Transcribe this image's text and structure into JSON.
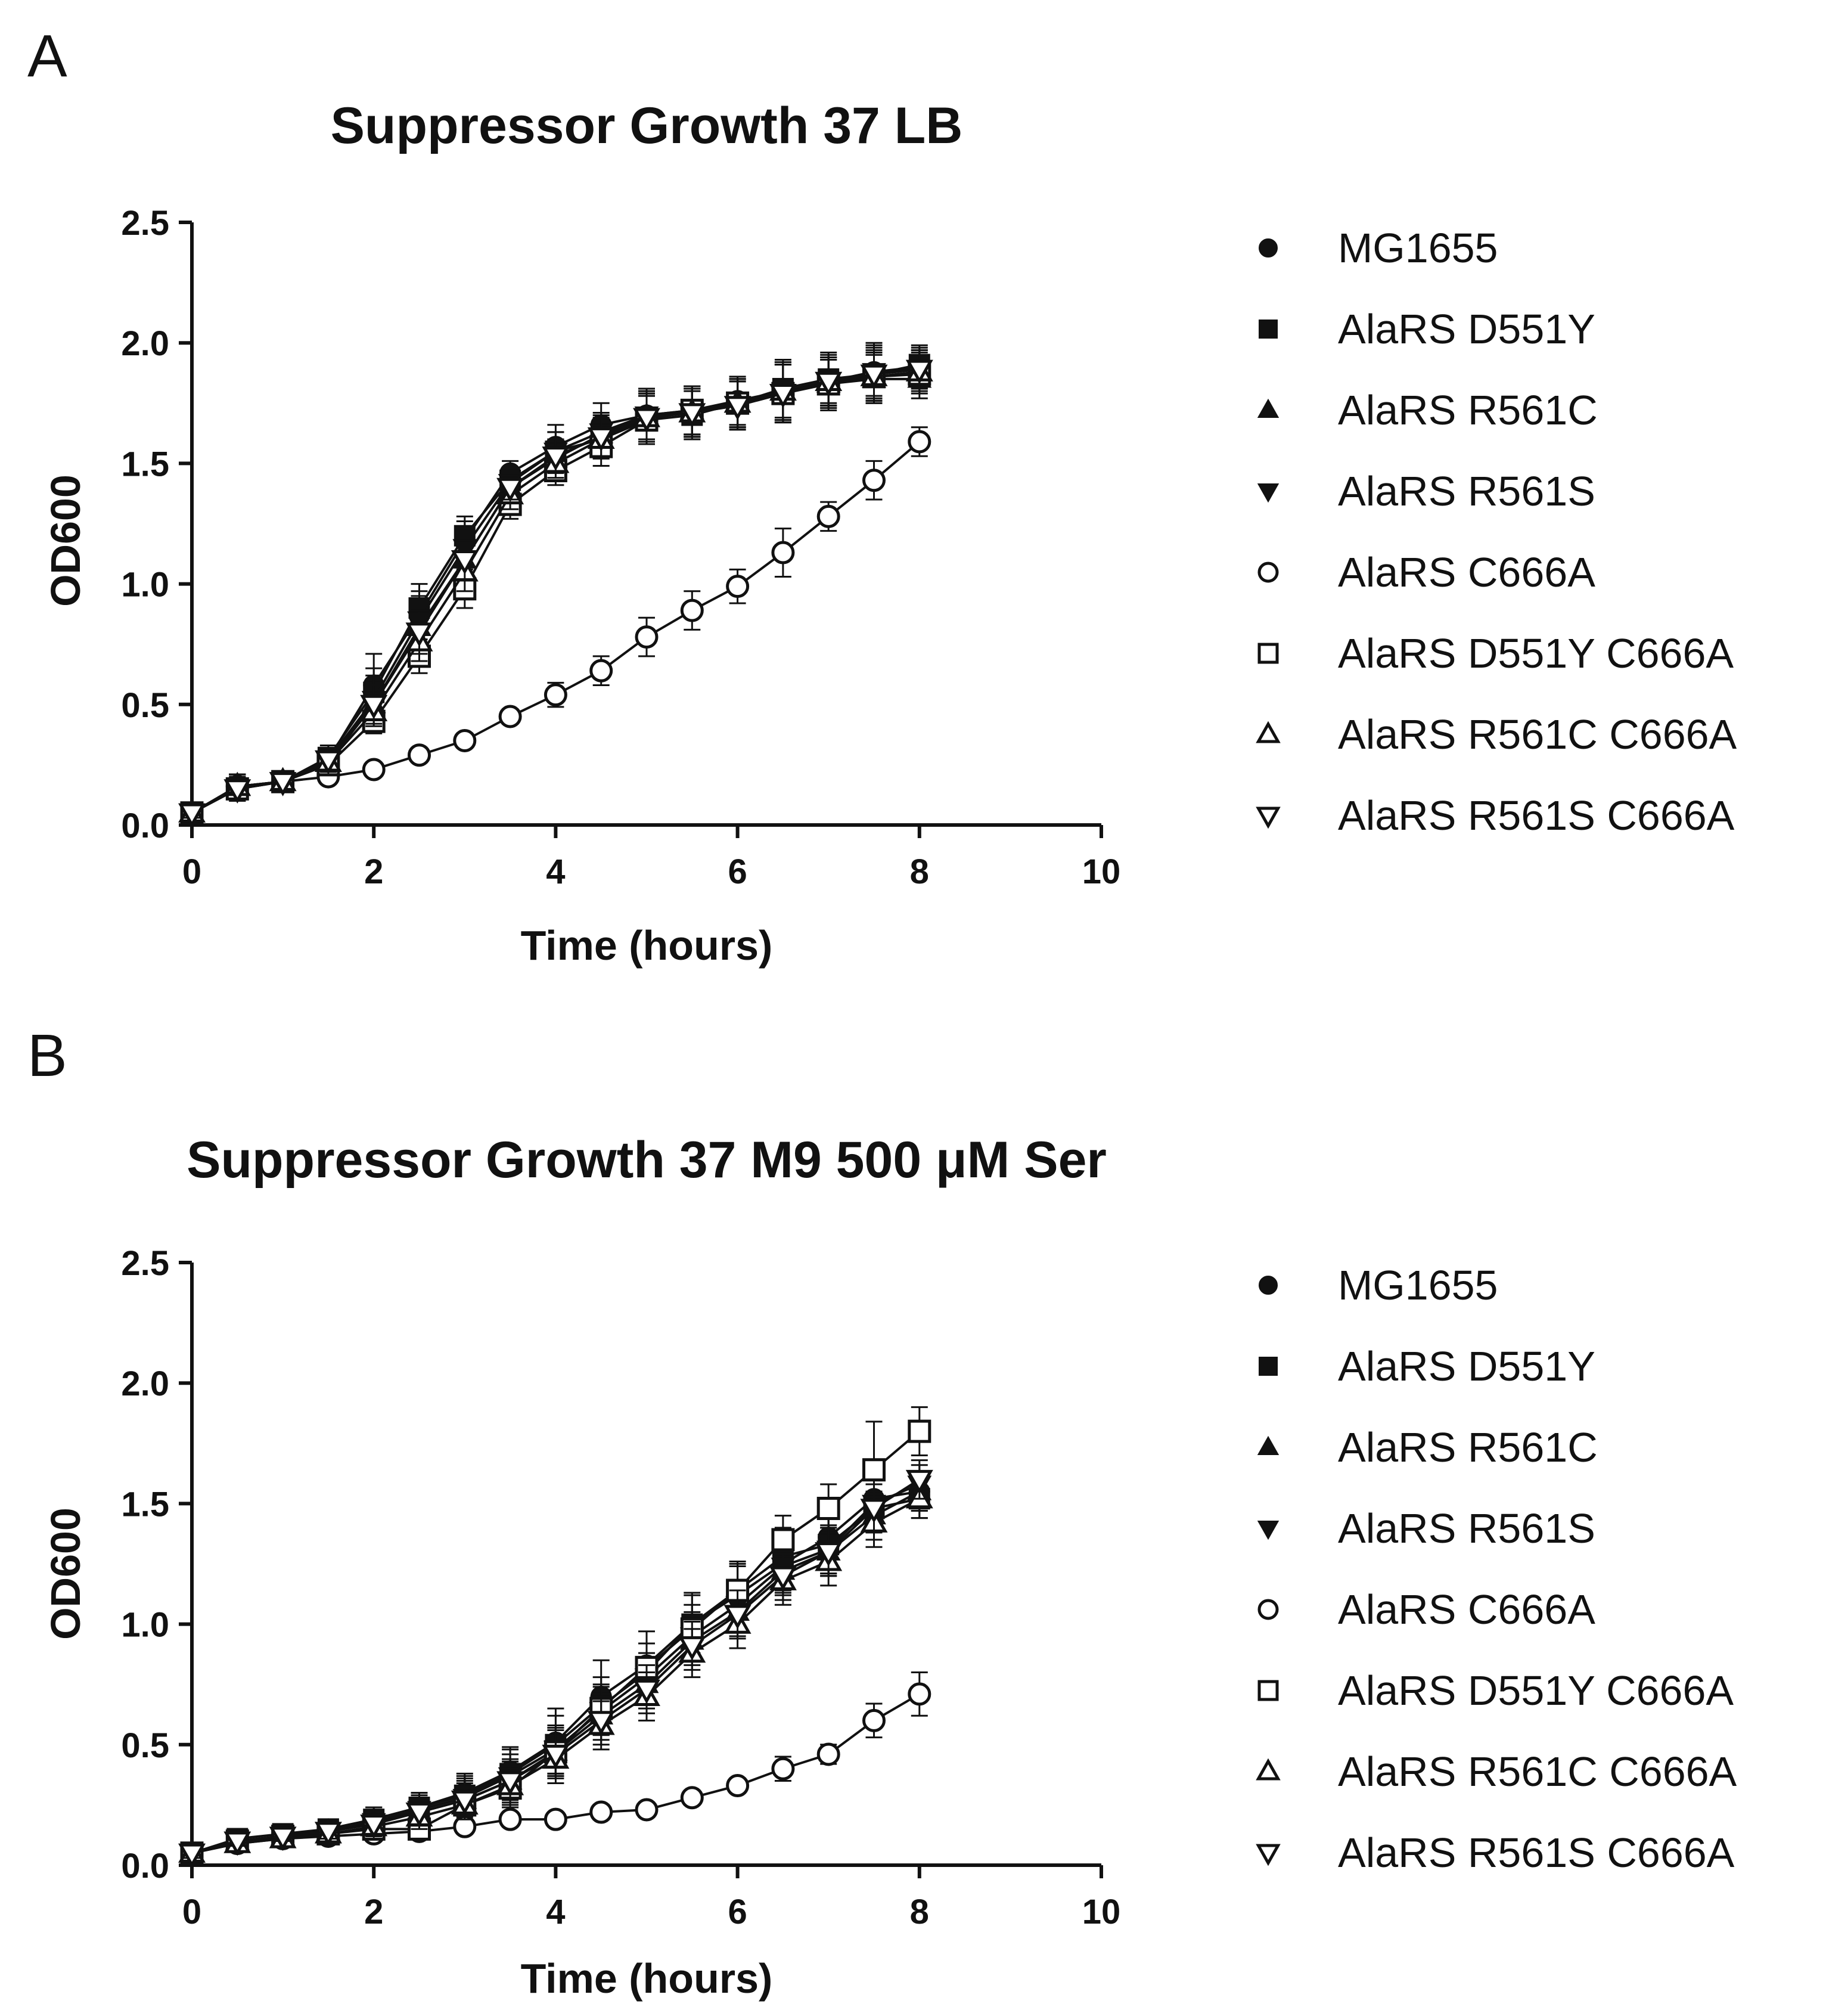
{
  "chart_data": [
    {
      "panel": "A",
      "type": "line",
      "title": "Suppressor Growth 37 LB",
      "xlabel": "Time (hours)",
      "ylabel": "OD600",
      "xlim": [
        0,
        10
      ],
      "ylim": [
        0,
        2.5
      ],
      "xticks": [
        "0",
        "2",
        "4",
        "6",
        "8",
        "10"
      ],
      "yticks": [
        "0.0",
        "0.5",
        "1.0",
        "1.5",
        "2.0",
        "2.5"
      ],
      "x": [
        0,
        0.5,
        1,
        1.5,
        2,
        2.5,
        3,
        3.5,
        4,
        4.5,
        5,
        5.5,
        6,
        6.5,
        7,
        7.5,
        8
      ],
      "legend_position": "right",
      "series": [
        {
          "name": "MG1655",
          "marker": "circle",
          "filled": true,
          "values": [
            0.05,
            0.16,
            0.18,
            0.27,
            0.58,
            0.87,
            1.18,
            1.46,
            1.57,
            1.66,
            1.7,
            1.72,
            1.76,
            1.8,
            1.84,
            1.88,
            1.9
          ],
          "errors": [
            0.02,
            0.05,
            0.03,
            0.05,
            0.13,
            0.1,
            0.08,
            0.05,
            0.09,
            0.09,
            0.11,
            0.1,
            0.1,
            0.12,
            0.12,
            0.12,
            0.08
          ]
        },
        {
          "name": "AlaRS D551Y",
          "marker": "square",
          "filled": true,
          "values": [
            0.05,
            0.15,
            0.18,
            0.28,
            0.55,
            0.9,
            1.2,
            1.43,
            1.55,
            1.6,
            1.68,
            1.7,
            1.75,
            1.81,
            1.85,
            1.87,
            1.91
          ],
          "errors": [
            0.02,
            0.04,
            0.03,
            0.05,
            0.1,
            0.1,
            0.08,
            0.05,
            0.08,
            0.08,
            0.1,
            0.1,
            0.1,
            0.12,
            0.1,
            0.12,
            0.08
          ]
        },
        {
          "name": "AlaRS R561C",
          "marker": "triangle-up",
          "filled": true,
          "values": [
            0.05,
            0.16,
            0.18,
            0.26,
            0.5,
            0.82,
            1.1,
            1.4,
            1.52,
            1.62,
            1.7,
            1.72,
            1.75,
            1.8,
            1.83,
            1.85,
            1.85
          ],
          "errors": [
            0.02,
            0.05,
            0.03,
            0.04,
            0.1,
            0.1,
            0.08,
            0.05,
            0.08,
            0.08,
            0.1,
            0.1,
            0.1,
            0.12,
            0.1,
            0.1,
            0.08
          ]
        },
        {
          "name": "AlaRS R561S",
          "marker": "triangle-down",
          "filled": true,
          "values": [
            0.05,
            0.15,
            0.18,
            0.27,
            0.52,
            0.85,
            1.15,
            1.42,
            1.55,
            1.63,
            1.7,
            1.71,
            1.74,
            1.79,
            1.84,
            1.88,
            1.89
          ],
          "errors": [
            0.02,
            0.05,
            0.03,
            0.05,
            0.1,
            0.1,
            0.08,
            0.05,
            0.08,
            0.08,
            0.1,
            0.1,
            0.1,
            0.12,
            0.1,
            0.1,
            0.08
          ]
        },
        {
          "name": "AlaRS C666A",
          "marker": "circle",
          "filled": false,
          "values": [
            0.05,
            0.16,
            0.18,
            0.2,
            0.23,
            0.29,
            0.35,
            0.45,
            0.54,
            0.64,
            0.78,
            0.89,
            0.99,
            1.13,
            1.28,
            1.43,
            1.59
          ],
          "errors": [
            0.02,
            0.05,
            0.03,
            0.03,
            0.02,
            0.02,
            0.02,
            0.03,
            0.05,
            0.06,
            0.08,
            0.08,
            0.07,
            0.1,
            0.06,
            0.08,
            0.06
          ]
        },
        {
          "name": "AlaRS D551Y C666A",
          "marker": "square",
          "filled": false,
          "values": [
            0.05,
            0.15,
            0.18,
            0.25,
            0.43,
            0.7,
            0.98,
            1.33,
            1.47,
            1.57,
            1.68,
            1.72,
            1.75,
            1.79,
            1.83,
            1.86,
            1.87
          ],
          "errors": [
            0.02,
            0.04,
            0.03,
            0.04,
            0.05,
            0.07,
            0.08,
            0.06,
            0.06,
            0.08,
            0.1,
            0.1,
            0.1,
            0.12,
            0.1,
            0.1,
            0.08
          ]
        },
        {
          "name": "AlaRS R561C C666A",
          "marker": "triangle-up",
          "filled": false,
          "values": [
            0.05,
            0.16,
            0.18,
            0.26,
            0.47,
            0.76,
            1.05,
            1.37,
            1.5,
            1.6,
            1.69,
            1.71,
            1.75,
            1.8,
            1.84,
            1.86,
            1.88
          ],
          "errors": [
            0.02,
            0.05,
            0.03,
            0.04,
            0.06,
            0.08,
            0.08,
            0.06,
            0.06,
            0.08,
            0.1,
            0.1,
            0.1,
            0.12,
            0.1,
            0.1,
            0.08
          ]
        },
        {
          "name": "AlaRS R561S C666A",
          "marker": "triangle-down",
          "filled": false,
          "values": [
            0.05,
            0.15,
            0.18,
            0.27,
            0.5,
            0.8,
            1.1,
            1.4,
            1.53,
            1.61,
            1.69,
            1.71,
            1.74,
            1.79,
            1.84,
            1.87,
            1.89
          ],
          "errors": [
            0.02,
            0.05,
            0.03,
            0.04,
            0.08,
            0.09,
            0.08,
            0.05,
            0.07,
            0.08,
            0.1,
            0.1,
            0.1,
            0.12,
            0.1,
            0.1,
            0.08
          ]
        }
      ]
    },
    {
      "panel": "B",
      "type": "line",
      "title": "Suppressor Growth 37 M9 500 μM Ser",
      "xlabel": "Time (hours)",
      "ylabel": "OD600",
      "xlim": [
        0,
        10
      ],
      "ylim": [
        0,
        2.5
      ],
      "xticks": [
        "0",
        "2",
        "4",
        "6",
        "8",
        "10"
      ],
      "yticks": [
        "0.0",
        "0.5",
        "1.0",
        "1.5",
        "2.0",
        "2.5"
      ],
      "x": [
        0,
        0.5,
        1,
        1.5,
        2,
        2.5,
        3,
        3.5,
        4,
        4.5,
        5,
        5.5,
        6,
        6.5,
        7,
        7.5,
        8
      ],
      "legend_position": "right",
      "series": [
        {
          "name": "MG1655",
          "marker": "circle",
          "filled": true,
          "values": [
            0.05,
            0.1,
            0.12,
            0.15,
            0.19,
            0.24,
            0.3,
            0.39,
            0.51,
            0.7,
            0.83,
            1.0,
            1.12,
            1.25,
            1.36,
            1.52,
            1.55
          ],
          "errors": [
            0.02,
            0.03,
            0.03,
            0.04,
            0.05,
            0.06,
            0.08,
            0.1,
            0.14,
            0.15,
            0.14,
            0.13,
            0.13,
            0.12,
            0.12,
            0.1,
            0.08
          ]
        },
        {
          "name": "AlaRS D551Y",
          "marker": "square",
          "filled": true,
          "values": [
            0.05,
            0.11,
            0.13,
            0.15,
            0.19,
            0.24,
            0.29,
            0.38,
            0.5,
            0.66,
            0.8,
            1.0,
            1.14,
            1.28,
            1.33,
            1.48,
            1.52
          ],
          "errors": [
            0.02,
            0.03,
            0.03,
            0.04,
            0.05,
            0.06,
            0.08,
            0.1,
            0.12,
            0.12,
            0.12,
            0.12,
            0.12,
            0.12,
            0.12,
            0.1,
            0.08
          ]
        },
        {
          "name": "AlaRS R561C",
          "marker": "triangle-up",
          "filled": true,
          "values": [
            0.05,
            0.1,
            0.12,
            0.14,
            0.18,
            0.22,
            0.27,
            0.35,
            0.47,
            0.62,
            0.75,
            0.93,
            1.05,
            1.22,
            1.3,
            1.45,
            1.55
          ],
          "errors": [
            0.02,
            0.03,
            0.03,
            0.04,
            0.05,
            0.06,
            0.08,
            0.09,
            0.1,
            0.1,
            0.1,
            0.1,
            0.1,
            0.1,
            0.1,
            0.1,
            0.08
          ]
        },
        {
          "name": "AlaRS R561S",
          "marker": "triangle-down",
          "filled": true,
          "values": [
            0.05,
            0.1,
            0.12,
            0.14,
            0.18,
            0.23,
            0.28,
            0.37,
            0.48,
            0.64,
            0.78,
            0.95,
            1.08,
            1.24,
            1.31,
            1.5,
            1.58
          ],
          "errors": [
            0.02,
            0.03,
            0.03,
            0.04,
            0.05,
            0.06,
            0.08,
            0.09,
            0.1,
            0.1,
            0.1,
            0.1,
            0.1,
            0.1,
            0.1,
            0.1,
            0.08
          ]
        },
        {
          "name": "AlaRS C666A",
          "marker": "circle",
          "filled": false,
          "values": [
            0.05,
            0.09,
            0.11,
            0.12,
            0.13,
            0.14,
            0.16,
            0.19,
            0.19,
            0.22,
            0.23,
            0.28,
            0.33,
            0.4,
            0.46,
            0.6,
            0.71
          ],
          "errors": [
            0.02,
            0.02,
            0.02,
            0.02,
            0.02,
            0.02,
            0.02,
            0.03,
            0.02,
            0.03,
            0.03,
            0.03,
            0.03,
            0.05,
            0.04,
            0.07,
            0.09
          ]
        },
        {
          "name": "AlaRS D551Y C666A",
          "marker": "square",
          "filled": false,
          "values": [
            0.05,
            0.1,
            0.12,
            0.13,
            0.15,
            0.15,
            0.25,
            0.32,
            0.47,
            0.65,
            0.82,
            0.98,
            1.14,
            1.35,
            1.48,
            1.64,
            1.8
          ],
          "errors": [
            0.02,
            0.02,
            0.02,
            0.03,
            0.04,
            0.04,
            0.06,
            0.08,
            0.1,
            0.1,
            0.1,
            0.1,
            0.1,
            0.1,
            0.1,
            0.2,
            0.1
          ]
        },
        {
          "name": "AlaRS R561C C666A",
          "marker": "triangle-up",
          "filled": false,
          "values": [
            0.05,
            0.09,
            0.11,
            0.13,
            0.16,
            0.2,
            0.25,
            0.33,
            0.44,
            0.58,
            0.7,
            0.88,
            1.0,
            1.18,
            1.26,
            1.42,
            1.52
          ],
          "errors": [
            0.02,
            0.02,
            0.02,
            0.03,
            0.04,
            0.05,
            0.06,
            0.08,
            0.1,
            0.1,
            0.1,
            0.1,
            0.1,
            0.1,
            0.1,
            0.1,
            0.08
          ]
        },
        {
          "name": "AlaRS R561S C666A",
          "marker": "triangle-down",
          "filled": false,
          "values": [
            0.05,
            0.1,
            0.12,
            0.14,
            0.17,
            0.22,
            0.27,
            0.35,
            0.46,
            0.6,
            0.73,
            0.91,
            1.04,
            1.2,
            1.3,
            1.48,
            1.6
          ],
          "errors": [
            0.02,
            0.02,
            0.02,
            0.03,
            0.04,
            0.05,
            0.07,
            0.08,
            0.1,
            0.1,
            0.1,
            0.1,
            0.1,
            0.1,
            0.1,
            0.1,
            0.08
          ]
        }
      ]
    }
  ],
  "colors": {
    "ink": "#111111",
    "background": "#ffffff"
  }
}
